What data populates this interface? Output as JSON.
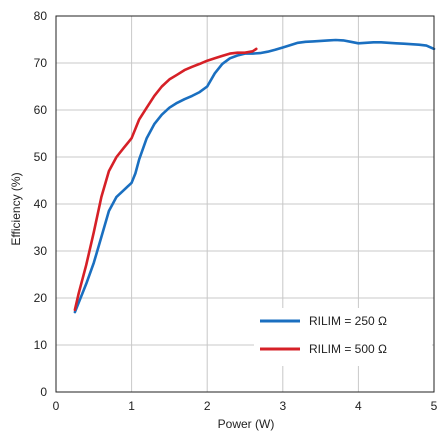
{
  "chart_data": {
    "type": "line",
    "xlabel": "Power (W)",
    "ylabel": "Efficiency (%)",
    "xlim": [
      0,
      5
    ],
    "ylim": [
      0,
      80
    ],
    "xticks": [
      "0",
      "1",
      "2",
      "3",
      "4",
      "5"
    ],
    "yticks": [
      "0",
      "10",
      "20",
      "30",
      "40",
      "50",
      "60",
      "70",
      "80"
    ],
    "grid": true,
    "legend_position": "bottom-right",
    "series": [
      {
        "name": "RILIM = 250 Ω",
        "color": "#1a6fc0",
        "x": [
          0.25,
          0.3,
          0.4,
          0.5,
          0.6,
          0.7,
          0.8,
          0.9,
          1.0,
          1.05,
          1.1,
          1.2,
          1.3,
          1.4,
          1.5,
          1.6,
          1.7,
          1.8,
          1.9,
          2.0,
          2.1,
          2.2,
          2.3,
          2.4,
          2.5,
          2.6,
          2.7,
          2.8,
          2.9,
          3.0,
          3.1,
          3.2,
          3.3,
          3.4,
          3.5,
          3.6,
          3.7,
          3.8,
          3.9,
          4.0,
          4.1,
          4.2,
          4.3,
          4.4,
          4.5,
          4.6,
          4.7,
          4.8,
          4.9,
          5.0
        ],
        "y": [
          17,
          19,
          23,
          27.5,
          33,
          38.5,
          41.5,
          43,
          44.5,
          46.5,
          49.5,
          54,
          57,
          59,
          60.5,
          61.5,
          62.3,
          63,
          63.8,
          65,
          67.8,
          69.8,
          71,
          71.6,
          72,
          72,
          72.1,
          72.4,
          72.8,
          73.3,
          73.8,
          74.3,
          74.5,
          74.6,
          74.7,
          74.8,
          74.9,
          74.8,
          74.5,
          74.2,
          74.3,
          74.4,
          74.4,
          74.3,
          74.2,
          74.1,
          74,
          73.9,
          73.7,
          73
        ]
      },
      {
        "name": "RILIM = 500 Ω",
        "color": "#d62027",
        "x": [
          0.25,
          0.3,
          0.4,
          0.5,
          0.6,
          0.7,
          0.8,
          0.9,
          1.0,
          1.05,
          1.1,
          1.2,
          1.3,
          1.4,
          1.5,
          1.6,
          1.7,
          1.8,
          1.9,
          2.0,
          2.1,
          2.2,
          2.3,
          2.4,
          2.5,
          2.6,
          2.65
        ],
        "y": [
          17.5,
          21,
          27,
          34,
          41.5,
          47,
          50,
          52,
          54,
          56,
          58,
          60.5,
          63,
          65,
          66.5,
          67.5,
          68.5,
          69.2,
          69.8,
          70.5,
          71,
          71.5,
          72,
          72.2,
          72.2,
          72.5,
          73
        ]
      }
    ]
  }
}
